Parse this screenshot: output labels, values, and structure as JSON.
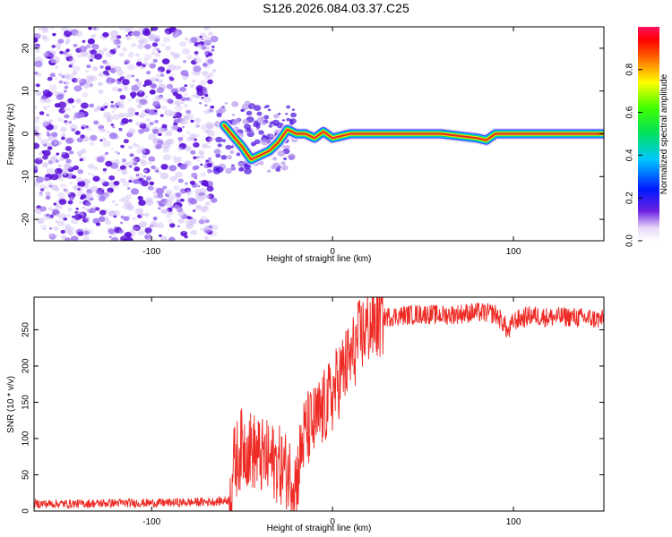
{
  "title": "S126.2026.084.03.37.C25",
  "colors": {
    "snr_line": "#ee2a24",
    "ridge": "#d62828",
    "ridge_core": "#3a3aff",
    "scatter": "#6d1fe0"
  },
  "chart_data": [
    {
      "type": "heatmap",
      "title": "",
      "xlabel": "Height of straight line (km)",
      "ylabel": "Frequency (Hz)",
      "xlim": [
        -165,
        150
      ],
      "ylim": [
        -25,
        25
      ],
      "x_ticks": [
        -100,
        0,
        100
      ],
      "x_tick_labels": [
        "-100",
        "0",
        "100"
      ],
      "y_ticks": [
        -20,
        -10,
        0,
        10,
        20
      ],
      "y_tick_labels": [
        "-20",
        "-10",
        "0",
        "10",
        "20"
      ],
      "noise_region_x": [
        -165,
        -65
      ],
      "ridge": {
        "x": [
          -60,
          -50,
          -45,
          -40,
          -35,
          -30,
          -25,
          -20,
          -15,
          -10,
          -5,
          0,
          10,
          20,
          40,
          60,
          80,
          85,
          90,
          100,
          120,
          150
        ],
        "y": [
          2,
          -3,
          -6,
          -5,
          -4,
          -2,
          1,
          0,
          0,
          -1,
          0.5,
          -1,
          0,
          0,
          0,
          0,
          -1,
          -1.5,
          0,
          0,
          0,
          0
        ]
      },
      "colorbar": {
        "label": "Normalized spectral amplitude",
        "range": [
          0,
          1
        ],
        "ticks": [
          0,
          0.2,
          0.4,
          0.6,
          0.8
        ],
        "tick_labels": [
          "0.0",
          "0.2",
          "0.4",
          "0.6",
          "0.8"
        ]
      }
    },
    {
      "type": "line",
      "title": "",
      "xlabel": "Height of straight line (km)",
      "ylabel": "SNR (10 * v/v)",
      "xlim": [
        -165,
        150
      ],
      "ylim": [
        0,
        295
      ],
      "x_ticks": [
        -100,
        0,
        100
      ],
      "x_tick_labels": [
        "-100",
        "0",
        "100"
      ],
      "y_ticks": [
        0,
        50,
        100,
        150,
        200,
        250
      ],
      "y_tick_labels": [
        "0",
        "50",
        "100",
        "150",
        "200",
        "250"
      ],
      "series": [
        {
          "name": "SNR",
          "x": [
            -165,
            -140,
            -120,
            -100,
            -80,
            -65,
            -57,
            -55,
            -50,
            -45,
            -40,
            -35,
            -30,
            -25,
            -20,
            -17,
            -15,
            -10,
            -5,
            0,
            5,
            10,
            15,
            20,
            25,
            30,
            40,
            50,
            60,
            70,
            80,
            90,
            95,
            97,
            100,
            110,
            120,
            130,
            140,
            150
          ],
          "y": [
            10,
            10,
            11,
            11,
            12,
            13,
            15,
            60,
            90,
            85,
            75,
            70,
            65,
            55,
            40,
            90,
            110,
            120,
            140,
            160,
            190,
            210,
            240,
            255,
            262,
            268,
            270,
            272,
            270,
            272,
            274,
            272,
            258,
            245,
            262,
            270,
            267,
            268,
            266,
            264
          ]
        }
      ]
    }
  ]
}
